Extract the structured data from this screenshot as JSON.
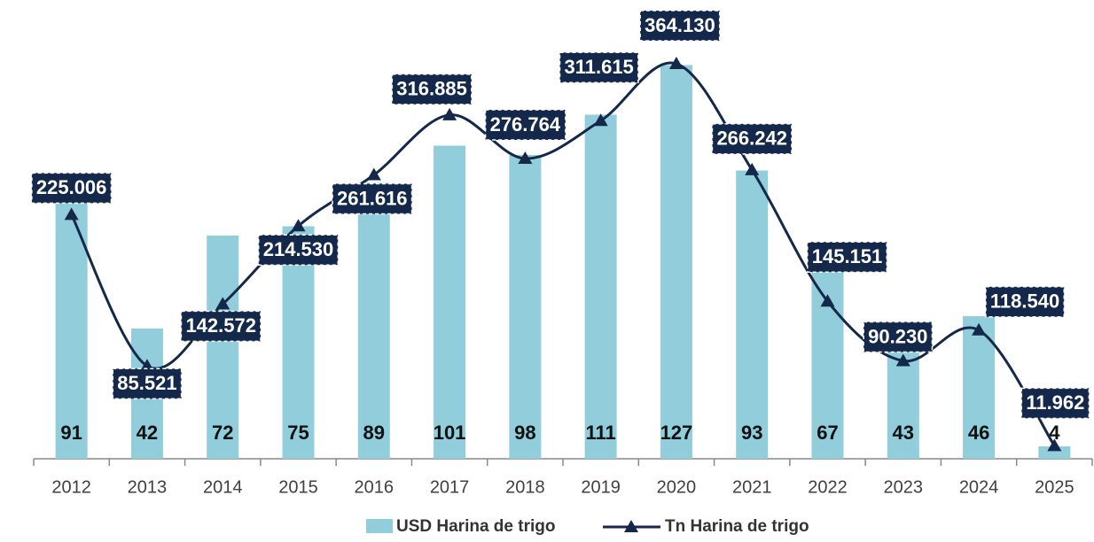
{
  "chart_data": {
    "type": "bar+line",
    "categories": [
      "2012",
      "2013",
      "2014",
      "2015",
      "2016",
      "2017",
      "2018",
      "2019",
      "2020",
      "2021",
      "2022",
      "2023",
      "2024",
      "2025"
    ],
    "ylim": [
      0,
      140
    ],
    "y2lim": [
      0,
      400000
    ],
    "series": [
      {
        "name": "USD Harina de trigo",
        "type": "bar",
        "color": "#92cddc",
        "values": [
          91,
          42,
          72,
          75,
          89,
          101,
          98,
          111,
          127,
          93,
          67,
          43,
          46,
          4
        ]
      },
      {
        "name": "Tn Harina de trigo",
        "type": "line",
        "axis": "y2",
        "color": "#14284b",
        "values": [
          225006,
          85521,
          142572,
          214530,
          261616,
          316885,
          276764,
          311615,
          364130,
          266242,
          145151,
          90230,
          118540,
          11962
        ],
        "value_labels": [
          "225.006",
          "85.521",
          "142.572",
          "214.530",
          "261.616",
          "316.885",
          "276.764",
          "311.615",
          "364.130",
          "266.242",
          "145.151",
          "90.230",
          "118.540",
          "11.962"
        ]
      }
    ]
  }
}
